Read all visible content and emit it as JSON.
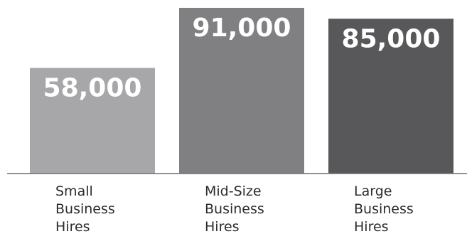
{
  "chart_data": {
    "type": "bar",
    "categories": [
      [
        "Small",
        "Business",
        "Hires"
      ],
      [
        "Mid-Size",
        "Business",
        "Hires"
      ],
      [
        "Large",
        "Business",
        "Hires"
      ]
    ],
    "values": [
      58000,
      91000,
      85000
    ],
    "value_labels": [
      "58,000",
      "91,000",
      "85,000"
    ],
    "bar_colors": [
      "#a7a7aa",
      "#808083",
      "#58585a"
    ],
    "baseline_color": "#6f6f6f",
    "ylim": [
      0,
      91000
    ],
    "grid": false,
    "legend": "none"
  }
}
